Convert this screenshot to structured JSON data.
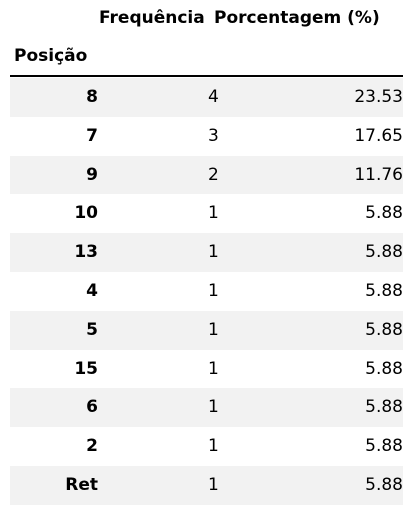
{
  "table": {
    "header": {
      "freq": "Frequência",
      "pct": "Porcentagem (%)",
      "index_name": "Posição"
    },
    "rows": [
      {
        "pos": "8",
        "freq": "4",
        "pct": "23.53"
      },
      {
        "pos": "7",
        "freq": "3",
        "pct": "17.65"
      },
      {
        "pos": "9",
        "freq": "2",
        "pct": "11.76"
      },
      {
        "pos": "10",
        "freq": "1",
        "pct": "5.88"
      },
      {
        "pos": "13",
        "freq": "1",
        "pct": "5.88"
      },
      {
        "pos": "4",
        "freq": "1",
        "pct": "5.88"
      },
      {
        "pos": "5",
        "freq": "1",
        "pct": "5.88"
      },
      {
        "pos": "15",
        "freq": "1",
        "pct": "5.88"
      },
      {
        "pos": "6",
        "freq": "1",
        "pct": "5.88"
      },
      {
        "pos": "2",
        "freq": "1",
        "pct": "5.88"
      },
      {
        "pos": "Ret",
        "freq": "1",
        "pct": "5.88"
      }
    ],
    "colors": {
      "stripe": "#f2f2f2",
      "rule": "#000000"
    }
  }
}
